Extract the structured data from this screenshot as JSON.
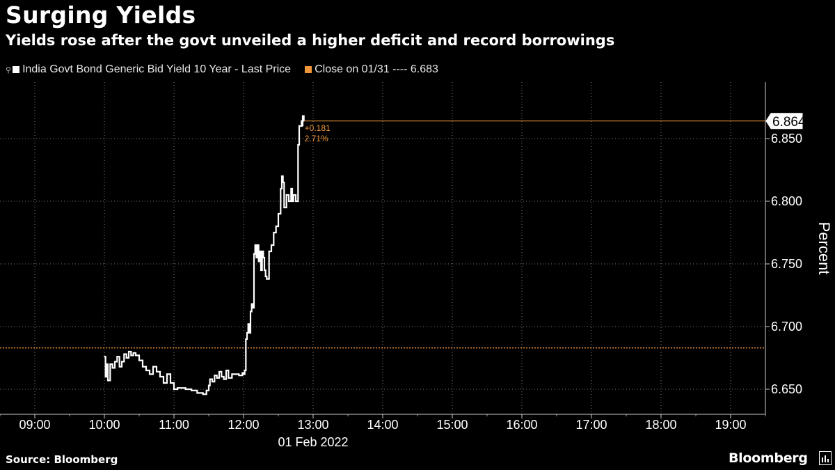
{
  "header": {
    "title": "Surging Yields",
    "subtitle": "Yields rose after the govt unveiled a higher deficit and record borrowings"
  },
  "legend": {
    "series_label": "India Govt Bond Generic Bid Yield 10 Year - Last Price",
    "close_label": "Close on 01/31 ---- 6.683"
  },
  "footer": {
    "source": "Source: Bloomberg",
    "brand": "Bloomberg"
  },
  "colors": {
    "background": "#000000",
    "series": "#ffffff",
    "close_line": "#f0963a",
    "grid": "#7a7a7a"
  },
  "chart_data": {
    "type": "line",
    "title": "Surging Yields",
    "subtitle": "Yields rose after the govt unveiled a higher deficit and record borrowings",
    "ylabel": "Percent",
    "xlabel": "01 Feb 2022",
    "xlim": [
      "08:30",
      "19:30"
    ],
    "ylim": [
      6.63,
      6.895
    ],
    "x_ticks": [
      "09:00",
      "10:00",
      "11:00",
      "12:00",
      "13:00",
      "14:00",
      "15:00",
      "16:00",
      "17:00",
      "18:00",
      "19:00"
    ],
    "y_ticks": [
      "6.650",
      "6.700",
      "6.750",
      "6.800",
      "6.850"
    ],
    "grid": true,
    "legend_position": "top-left",
    "series": [
      {
        "name": "India Govt Bond Generic Bid Yield 10 Year - Last Price",
        "x": [
          "10:00",
          "10:01",
          "10:02",
          "10:03",
          "10:05",
          "10:07",
          "10:09",
          "10:11",
          "10:13",
          "10:15",
          "10:17",
          "10:19",
          "10:21",
          "10:23",
          "10:25",
          "10:27",
          "10:30",
          "10:33",
          "10:36",
          "10:39",
          "10:42",
          "10:45",
          "10:48",
          "10:51",
          "10:54",
          "10:57",
          "11:00",
          "11:03",
          "11:06",
          "11:10",
          "11:15",
          "11:20",
          "11:25",
          "11:28",
          "11:30",
          "11:31",
          "11:33",
          "11:35",
          "11:37",
          "11:39",
          "11:41",
          "11:43",
          "11:45",
          "11:47",
          "11:50",
          "11:53",
          "11:56",
          "11:59",
          "12:00",
          "12:01",
          "12:02",
          "12:03",
          "12:04",
          "12:05",
          "12:06",
          "12:07",
          "12:08",
          "12:09",
          "12:10",
          "12:11",
          "12:12",
          "12:13",
          "12:14",
          "12:15",
          "12:16",
          "12:17",
          "12:18",
          "12:19",
          "12:20",
          "12:22",
          "12:24",
          "12:26",
          "12:28",
          "12:30",
          "12:32",
          "12:33",
          "12:34",
          "12:35",
          "12:37",
          "12:39",
          "12:41",
          "12:42",
          "12:43",
          "12:45",
          "12:47",
          "12:48",
          "12:50",
          "12:51",
          "12:51",
          "12:52"
        ],
        "values": [
          6.676,
          6.66,
          6.67,
          6.657,
          6.67,
          6.667,
          6.672,
          6.676,
          6.668,
          6.672,
          6.678,
          6.675,
          6.68,
          6.677,
          6.679,
          6.677,
          6.673,
          6.668,
          6.665,
          6.662,
          6.668,
          6.664,
          6.66,
          6.655,
          6.662,
          6.655,
          6.65,
          6.651,
          6.651,
          6.65,
          6.649,
          6.647,
          6.646,
          6.649,
          6.653,
          6.658,
          6.656,
          6.661,
          6.659,
          6.664,
          6.66,
          6.658,
          6.665,
          6.659,
          6.662,
          6.662,
          6.661,
          6.663,
          6.662,
          6.665,
          6.69,
          6.695,
          6.702,
          6.695,
          6.712,
          6.718,
          6.715,
          6.758,
          6.765,
          6.755,
          6.765,
          6.752,
          6.76,
          6.745,
          6.76,
          6.755,
          6.745,
          6.74,
          6.738,
          6.76,
          6.765,
          6.775,
          6.78,
          6.79,
          6.81,
          6.82,
          6.815,
          6.795,
          6.805,
          6.8,
          6.81,
          6.8,
          6.805,
          6.8,
          6.845,
          6.86,
          6.864,
          6.86,
          6.868,
          6.864
        ]
      }
    ],
    "reference_line": {
      "label": "Close on 01/31",
      "value": 6.683
    },
    "last_value": {
      "value": 6.864,
      "label": "6.864"
    },
    "change_annotation": {
      "abs": "+0.181",
      "pct": "2.71%"
    }
  }
}
